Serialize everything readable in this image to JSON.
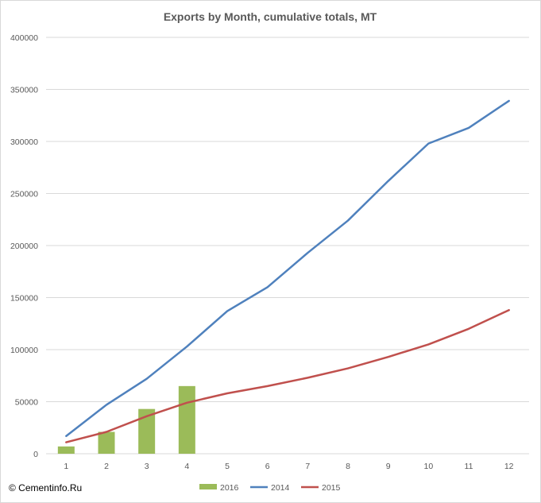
{
  "copyright": "© Cementinfo.Ru",
  "colors": {
    "s2016": "#9bbb59",
    "s2014": "#4f81bd",
    "s2015": "#c0504d",
    "grid": "#d9d9d9",
    "text": "#595959"
  },
  "chart_data": {
    "type": "bar",
    "title": "Exports by Month, cumulative totals, MT",
    "xlabel": "",
    "ylabel": "",
    "categories": [
      "1",
      "2",
      "3",
      "4",
      "5",
      "6",
      "7",
      "8",
      "9",
      "10",
      "11",
      "12"
    ],
    "ylim": [
      0,
      400000
    ],
    "yticks": [
      "0",
      "50000",
      "100000",
      "150000",
      "200000",
      "250000",
      "300000",
      "350000",
      "400000"
    ],
    "grid": true,
    "legend_position": "bottom",
    "series": [
      {
        "name": "2016",
        "type": "bar",
        "color": "#9bbb59",
        "values": [
          7000,
          21000,
          43000,
          65000,
          null,
          null,
          null,
          null,
          null,
          null,
          null,
          null
        ]
      },
      {
        "name": "2014",
        "type": "line",
        "color": "#4f81bd",
        "values": [
          17000,
          47000,
          72000,
          103000,
          137000,
          160000,
          193000,
          224000,
          262000,
          298000,
          313000,
          339000
        ]
      },
      {
        "name": "2015",
        "type": "line",
        "color": "#c0504d",
        "values": [
          11000,
          21000,
          36000,
          49000,
          58000,
          65000,
          73000,
          82000,
          93000,
          105000,
          120000,
          138000
        ]
      }
    ]
  }
}
